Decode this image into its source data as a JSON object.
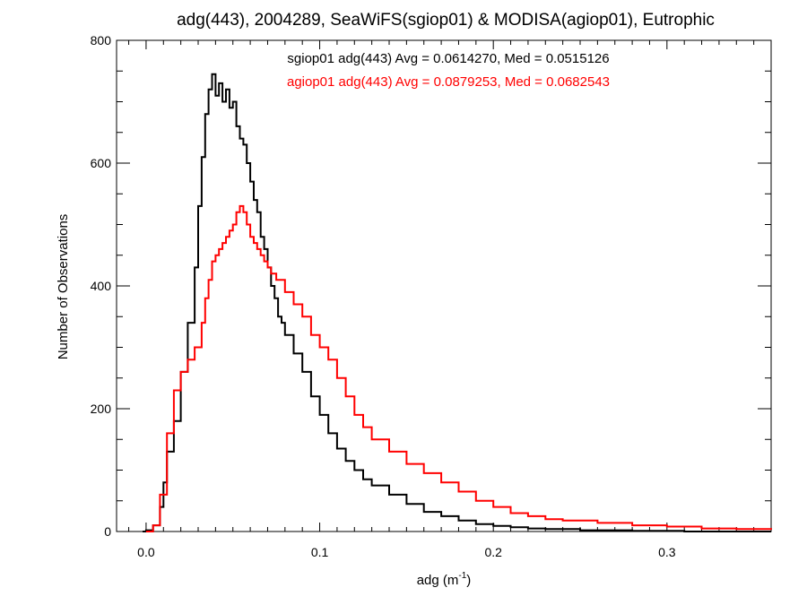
{
  "chart_data": {
    "type": "line",
    "title": "adg(443), 2004289, SeaWiFS(sgiop01) & MODISA(agiop01), Eutrophic",
    "xlabel_main": "adg (m",
    "xlabel_sup": "-1",
    "xlabel_end": ")",
    "ylabel": "Number of Observations",
    "xlim": [
      -0.017,
      0.36
    ],
    "ylim": [
      0,
      800
    ],
    "x_ticks": [
      {
        "value": 0.0,
        "label": "0.0"
      },
      {
        "value": 0.1,
        "label": "0.1"
      },
      {
        "value": 0.2,
        "label": "0.2"
      },
      {
        "value": 0.3,
        "label": "0.3"
      }
    ],
    "y_ticks": [
      {
        "value": 0,
        "label": "0"
      },
      {
        "value": 200,
        "label": "200"
      },
      {
        "value": 400,
        "label": "400"
      },
      {
        "value": 600,
        "label": "600"
      },
      {
        "value": 800,
        "label": "800"
      }
    ],
    "grid": false,
    "legend_position": "top-center",
    "series": [
      {
        "name": "sgiop01 adg(443) Avg = 0.0614270, Med = 0.0515126",
        "color": "#000000",
        "points": [
          [
            -0.002,
            0
          ],
          [
            0.0,
            2
          ],
          [
            0.004,
            10
          ],
          [
            0.008,
            40
          ],
          [
            0.01,
            80
          ],
          [
            0.012,
            130
          ],
          [
            0.016,
            180
          ],
          [
            0.02,
            260
          ],
          [
            0.024,
            340
          ],
          [
            0.028,
            430
          ],
          [
            0.03,
            530
          ],
          [
            0.032,
            610
          ],
          [
            0.034,
            680
          ],
          [
            0.036,
            720
          ],
          [
            0.038,
            745
          ],
          [
            0.04,
            710
          ],
          [
            0.042,
            730
          ],
          [
            0.044,
            700
          ],
          [
            0.046,
            720
          ],
          [
            0.048,
            690
          ],
          [
            0.05,
            700
          ],
          [
            0.052,
            660
          ],
          [
            0.054,
            640
          ],
          [
            0.056,
            630
          ],
          [
            0.058,
            600
          ],
          [
            0.06,
            570
          ],
          [
            0.062,
            540
          ],
          [
            0.064,
            520
          ],
          [
            0.066,
            480
          ],
          [
            0.068,
            460
          ],
          [
            0.07,
            430
          ],
          [
            0.072,
            400
          ],
          [
            0.074,
            380
          ],
          [
            0.076,
            350
          ],
          [
            0.078,
            340
          ],
          [
            0.08,
            320
          ],
          [
            0.085,
            290
          ],
          [
            0.09,
            260
          ],
          [
            0.095,
            220
          ],
          [
            0.1,
            190
          ],
          [
            0.105,
            160
          ],
          [
            0.11,
            135
          ],
          [
            0.115,
            115
          ],
          [
            0.12,
            100
          ],
          [
            0.125,
            85
          ],
          [
            0.13,
            75
          ],
          [
            0.14,
            60
          ],
          [
            0.15,
            45
          ],
          [
            0.16,
            32
          ],
          [
            0.17,
            25
          ],
          [
            0.18,
            18
          ],
          [
            0.19,
            12
          ],
          [
            0.2,
            9
          ],
          [
            0.21,
            7
          ],
          [
            0.22,
            5
          ],
          [
            0.23,
            4
          ],
          [
            0.25,
            2
          ],
          [
            0.28,
            1
          ],
          [
            0.31,
            0
          ],
          [
            0.36,
            0
          ]
        ]
      },
      {
        "name": "agiop01 adg(443) Avg = 0.0879253, Med = 0.0682543",
        "color": "#ff0000",
        "points": [
          [
            0.0,
            0
          ],
          [
            0.004,
            10
          ],
          [
            0.008,
            60
          ],
          [
            0.012,
            160
          ],
          [
            0.016,
            230
          ],
          [
            0.02,
            260
          ],
          [
            0.024,
            280
          ],
          [
            0.028,
            300
          ],
          [
            0.032,
            340
          ],
          [
            0.034,
            380
          ],
          [
            0.036,
            410
          ],
          [
            0.038,
            440
          ],
          [
            0.04,
            450
          ],
          [
            0.042,
            460
          ],
          [
            0.044,
            470
          ],
          [
            0.046,
            480
          ],
          [
            0.048,
            490
          ],
          [
            0.05,
            500
          ],
          [
            0.052,
            520
          ],
          [
            0.054,
            530
          ],
          [
            0.056,
            520
          ],
          [
            0.058,
            500
          ],
          [
            0.06,
            480
          ],
          [
            0.062,
            470
          ],
          [
            0.064,
            460
          ],
          [
            0.066,
            450
          ],
          [
            0.068,
            440
          ],
          [
            0.07,
            430
          ],
          [
            0.072,
            420
          ],
          [
            0.075,
            410
          ],
          [
            0.08,
            390
          ],
          [
            0.085,
            370
          ],
          [
            0.09,
            350
          ],
          [
            0.095,
            320
          ],
          [
            0.1,
            300
          ],
          [
            0.105,
            280
          ],
          [
            0.11,
            250
          ],
          [
            0.115,
            220
          ],
          [
            0.12,
            190
          ],
          [
            0.125,
            170
          ],
          [
            0.13,
            150
          ],
          [
            0.14,
            130
          ],
          [
            0.15,
            110
          ],
          [
            0.16,
            95
          ],
          [
            0.17,
            80
          ],
          [
            0.18,
            65
          ],
          [
            0.19,
            50
          ],
          [
            0.2,
            40
          ],
          [
            0.21,
            30
          ],
          [
            0.22,
            25
          ],
          [
            0.23,
            20
          ],
          [
            0.24,
            18
          ],
          [
            0.26,
            14
          ],
          [
            0.28,
            10
          ],
          [
            0.3,
            8
          ],
          [
            0.32,
            5
          ],
          [
            0.34,
            4
          ],
          [
            0.36,
            3
          ]
        ]
      }
    ]
  }
}
